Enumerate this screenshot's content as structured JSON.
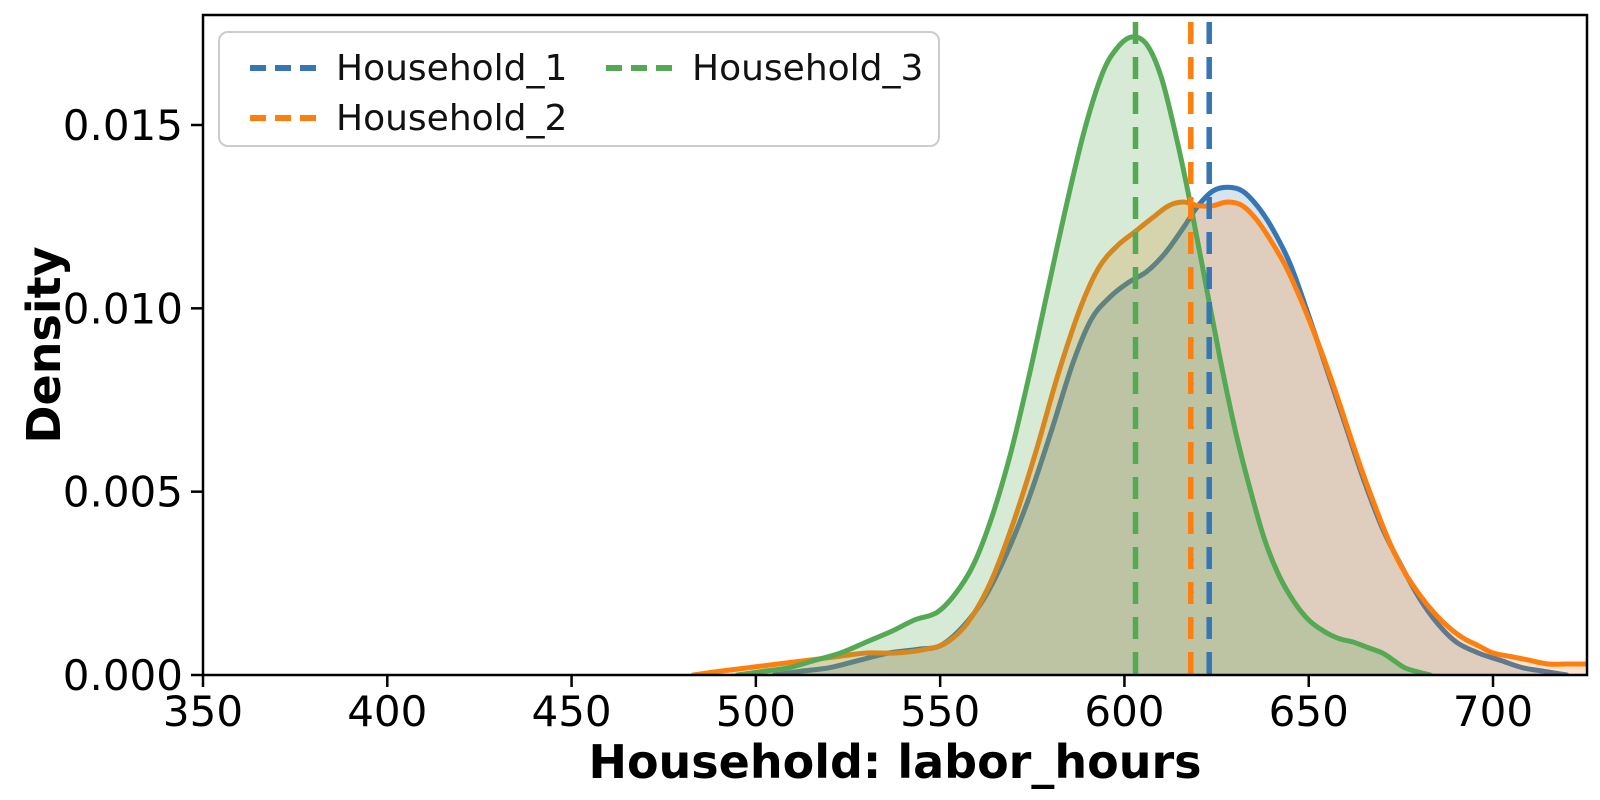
{
  "chart_data": {
    "type": "area",
    "subtype": "kde-density",
    "title": "",
    "xlabel": "Household: labor_hours",
    "ylabel": "Density",
    "xlim": [
      350,
      725.5
    ],
    "ylim": [
      0,
      0.018
    ],
    "grid": false,
    "legend_position": "upper left",
    "xticks": [
      350,
      400,
      450,
      500,
      550,
      600,
      650,
      700
    ],
    "yticks": [
      {
        "v": 0.0,
        "label": "0.000"
      },
      {
        "v": 0.005,
        "label": "0.005"
      },
      {
        "v": 0.01,
        "label": "0.010"
      },
      {
        "v": 0.015,
        "label": "0.015"
      }
    ],
    "series": [
      {
        "name": "Household_1",
        "color": "#3776b4",
        "fill": "rgba(55,118,180,0.20)",
        "mean_line": 623,
        "line_style": "solid",
        "mean_line_style": "dashed",
        "points": [
          [
            505,
            0
          ],
          [
            512,
            0.0001
          ],
          [
            520,
            0.0002
          ],
          [
            528,
            0.0004
          ],
          [
            536,
            0.0006
          ],
          [
            544,
            0.0007
          ],
          [
            550,
            0.0008
          ],
          [
            556,
            0.0013
          ],
          [
            562,
            0.0021
          ],
          [
            568,
            0.0033
          ],
          [
            574,
            0.0048
          ],
          [
            580,
            0.0066
          ],
          [
            586,
            0.0085
          ],
          [
            591,
            0.0097
          ],
          [
            596,
            0.0103
          ],
          [
            601,
            0.0107
          ],
          [
            606,
            0.011
          ],
          [
            611,
            0.0115
          ],
          [
            616,
            0.0122
          ],
          [
            620,
            0.0128
          ],
          [
            624,
            0.0132
          ],
          [
            628,
            0.0133
          ],
          [
            632,
            0.0132
          ],
          [
            636,
            0.0128
          ],
          [
            640,
            0.0122
          ],
          [
            645,
            0.0112
          ],
          [
            650,
            0.0098
          ],
          [
            655,
            0.0083
          ],
          [
            660,
            0.0068
          ],
          [
            665,
            0.0053
          ],
          [
            670,
            0.004
          ],
          [
            675,
            0.003
          ],
          [
            680,
            0.0021
          ],
          [
            685,
            0.0014
          ],
          [
            690,
            0.0009
          ],
          [
            696,
            0.0006
          ],
          [
            702,
            0.0004
          ],
          [
            708,
            0.0002
          ],
          [
            714,
            0.0001
          ],
          [
            720,
            0
          ]
        ]
      },
      {
        "name": "Household_2",
        "color": "#ff7f0e",
        "fill": "rgba(255,127,14,0.22)",
        "mean_line": 618,
        "line_style": "solid",
        "mean_line_style": "dashed",
        "points": [
          [
            483,
            0
          ],
          [
            490,
            0.0001
          ],
          [
            498,
            0.0002
          ],
          [
            506,
            0.0003
          ],
          [
            514,
            0.0004
          ],
          [
            522,
            0.0005
          ],
          [
            530,
            0.0006
          ],
          [
            538,
            0.0006
          ],
          [
            546,
            0.0007
          ],
          [
            552,
            0.0009
          ],
          [
            558,
            0.0015
          ],
          [
            564,
            0.0026
          ],
          [
            570,
            0.0042
          ],
          [
            576,
            0.0061
          ],
          [
            582,
            0.0082
          ],
          [
            588,
            0.01
          ],
          [
            593,
            0.0111
          ],
          [
            598,
            0.0117
          ],
          [
            603,
            0.0121
          ],
          [
            608,
            0.0125
          ],
          [
            612,
            0.0128
          ],
          [
            616,
            0.0129
          ],
          [
            620,
            0.0128
          ],
          [
            624,
            0.0128
          ],
          [
            628,
            0.0129
          ],
          [
            632,
            0.0128
          ],
          [
            636,
            0.0124
          ],
          [
            640,
            0.0118
          ],
          [
            644,
            0.0111
          ],
          [
            648,
            0.0102
          ],
          [
            652,
            0.0092
          ],
          [
            656,
            0.0081
          ],
          [
            660,
            0.0069
          ],
          [
            664,
            0.0057
          ],
          [
            668,
            0.0046
          ],
          [
            672,
            0.0036
          ],
          [
            676,
            0.0028
          ],
          [
            680,
            0.0022
          ],
          [
            684,
            0.0017
          ],
          [
            688,
            0.0013
          ],
          [
            692,
            0.001
          ],
          [
            696,
            0.0008
          ],
          [
            700,
            0.0006
          ],
          [
            705,
            0.0005
          ],
          [
            710,
            0.0004
          ],
          [
            715,
            0.0003
          ],
          [
            720,
            0.0003
          ],
          [
            725,
            0.0003
          ]
        ]
      },
      {
        "name": "Household_3",
        "color": "#55a954",
        "fill": "rgba(85,169,84,0.24)",
        "mean_line": 603,
        "line_style": "solid",
        "mean_line_style": "dashed",
        "points": [
          [
            495,
            0
          ],
          [
            502,
            0.0001
          ],
          [
            509,
            0.0002
          ],
          [
            516,
            0.0004
          ],
          [
            523,
            0.0006
          ],
          [
            530,
            0.0009
          ],
          [
            537,
            0.0012
          ],
          [
            543,
            0.0015
          ],
          [
            549,
            0.0017
          ],
          [
            554,
            0.0022
          ],
          [
            559,
            0.003
          ],
          [
            564,
            0.0043
          ],
          [
            569,
            0.006
          ],
          [
            574,
            0.0081
          ],
          [
            579,
            0.0104
          ],
          [
            584,
            0.0127
          ],
          [
            589,
            0.0148
          ],
          [
            594,
            0.0164
          ],
          [
            598,
            0.0171
          ],
          [
            602,
            0.0174
          ],
          [
            606,
            0.0172
          ],
          [
            610,
            0.0163
          ],
          [
            614,
            0.0147
          ],
          [
            618,
            0.0128
          ],
          [
            622,
            0.0107
          ],
          [
            626,
            0.0086
          ],
          [
            630,
            0.0067
          ],
          [
            634,
            0.0051
          ],
          [
            638,
            0.0037
          ],
          [
            642,
            0.0027
          ],
          [
            646,
            0.002
          ],
          [
            650,
            0.0015
          ],
          [
            654,
            0.0012
          ],
          [
            658,
            0.001
          ],
          [
            662,
            0.0009
          ],
          [
            666,
            0.00075
          ],
          [
            670,
            0.0006
          ],
          [
            673,
            0.0004
          ],
          [
            676,
            0.0002
          ],
          [
            679,
            0.0001
          ],
          [
            683,
            0
          ]
        ]
      }
    ]
  },
  "legend": {
    "entries": [
      {
        "label": "Household_1",
        "color": "#3776b4"
      },
      {
        "label": "Household_2",
        "color": "#ff7f0e"
      },
      {
        "label": "Household_3",
        "color": "#55a954"
      }
    ]
  },
  "style": {
    "spine_color": "#000000",
    "background": "#ffffff",
    "legend_border": "#cccccc"
  }
}
